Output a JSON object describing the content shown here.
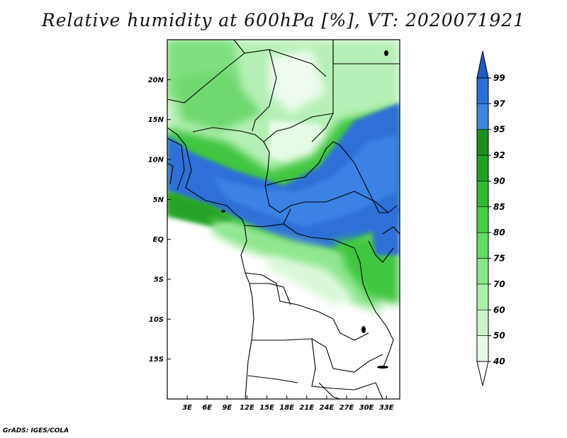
{
  "title": "Relative humidity at 600hPa [%], VT: 2020071921",
  "credit": "GrADS: IGES/COLA",
  "map": {
    "lon_range": [
      0,
      35
    ],
    "lat_range": [
      -20,
      25
    ],
    "lat_ticks": [
      {
        "value": 20,
        "label": "20N"
      },
      {
        "value": 15,
        "label": "15N"
      },
      {
        "value": 10,
        "label": "10N"
      },
      {
        "value": 5,
        "label": "5N"
      },
      {
        "value": 0,
        "label": "EQ"
      },
      {
        "value": -5,
        "label": "5S"
      },
      {
        "value": -10,
        "label": "10S"
      },
      {
        "value": -15,
        "label": "15S"
      }
    ],
    "lon_ticks": [
      {
        "value": 3,
        "label": "3E"
      },
      {
        "value": 6,
        "label": "6E"
      },
      {
        "value": 9,
        "label": "9E"
      },
      {
        "value": 12,
        "label": "12E"
      },
      {
        "value": 15,
        "label": "15E"
      },
      {
        "value": 18,
        "label": "18E"
      },
      {
        "value": 21,
        "label": "21E"
      },
      {
        "value": 24,
        "label": "24E"
      },
      {
        "value": 27,
        "label": "27E"
      },
      {
        "value": 30,
        "label": "30E"
      },
      {
        "value": 33,
        "label": "33E"
      }
    ]
  },
  "colorbar": {
    "levels": [
      {
        "label": "99",
        "color": "#2a6fd6"
      },
      {
        "label": "97",
        "color": "#3a86e0"
      },
      {
        "label": "95",
        "color": "#1b8f1b"
      },
      {
        "label": "92",
        "color": "#22a022"
      },
      {
        "label": "90",
        "color": "#31b931"
      },
      {
        "label": "85",
        "color": "#45cf45"
      },
      {
        "label": "80",
        "color": "#62dc62"
      },
      {
        "label": "75",
        "color": "#86e786"
      },
      {
        "label": "70",
        "color": "#a9f0a9"
      },
      {
        "label": "60",
        "color": "#c9f6c9"
      },
      {
        "label": "50",
        "color": "#e6fbe6"
      },
      {
        "label": "40",
        "color": "#ffffff"
      }
    ],
    "top_color": "#1e5fc7"
  }
}
